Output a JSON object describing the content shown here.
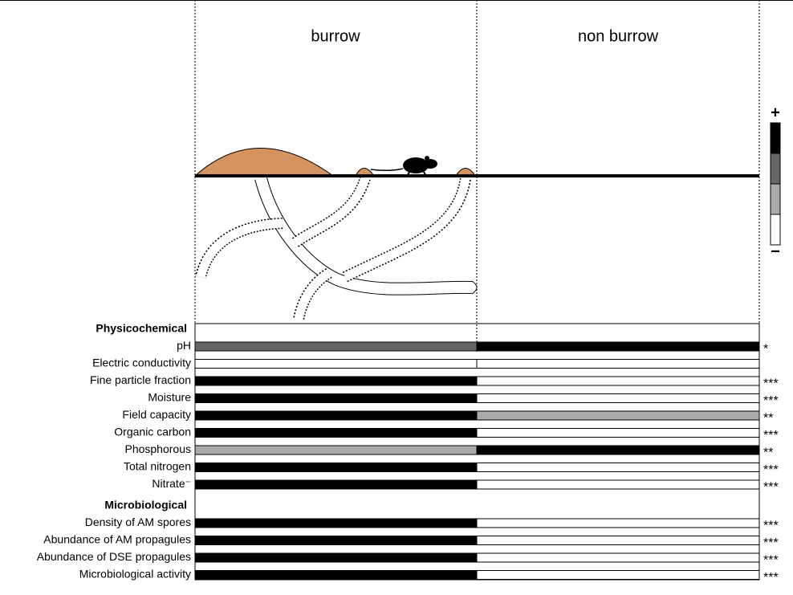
{
  "columns": [
    "burrow",
    "non burrow"
  ],
  "legend": {
    "high": "+",
    "low": "−",
    "colors": [
      "#000000",
      "#666666",
      "#aaaaaa",
      "#ffffff"
    ]
  },
  "sections": [
    {
      "title": "Physicochemical",
      "rows": [
        {
          "label": "pH",
          "burrow": "#666666",
          "non_burrow": "#000000",
          "significance": "*"
        },
        {
          "label": "Electric conductivity",
          "burrow": "#ffffff",
          "non_burrow": "#ffffff",
          "significance": ""
        },
        {
          "label": "Fine particle fraction",
          "burrow": "#000000",
          "non_burrow": "#ffffff",
          "significance": "***"
        },
        {
          "label": "Moisture",
          "burrow": "#000000",
          "non_burrow": "#ffffff",
          "significance": "***"
        },
        {
          "label": "Field capacity",
          "burrow": "#000000",
          "non_burrow": "#aaaaaa",
          "significance": "**"
        },
        {
          "label": "Organic carbon",
          "burrow": "#000000",
          "non_burrow": "#ffffff",
          "significance": "***"
        },
        {
          "label": "Phosphorous",
          "burrow": "#aaaaaa",
          "non_burrow": "#000000",
          "significance": "**"
        },
        {
          "label": "Total nitrogen",
          "burrow": "#000000",
          "non_burrow": "#ffffff",
          "significance": "***"
        },
        {
          "label": "Nitrate⁻",
          "burrow": "#000000",
          "non_burrow": "#ffffff",
          "significance": "***"
        }
      ]
    },
    {
      "title": "Microbiological",
      "rows": [
        {
          "label": "Density of AM spores",
          "burrow": "#000000",
          "non_burrow": "#ffffff",
          "significance": "***"
        },
        {
          "label": "Abundance of AM propagules",
          "burrow": "#000000",
          "non_burrow": "#ffffff",
          "significance": "***"
        },
        {
          "label": "Abundance of DSE propagules",
          "burrow": "#000000",
          "non_burrow": "#ffffff",
          "significance": "***"
        },
        {
          "label": "Microbiological activity",
          "burrow": "#000000",
          "non_burrow": "#ffffff",
          "significance": "***"
        }
      ]
    }
  ]
}
